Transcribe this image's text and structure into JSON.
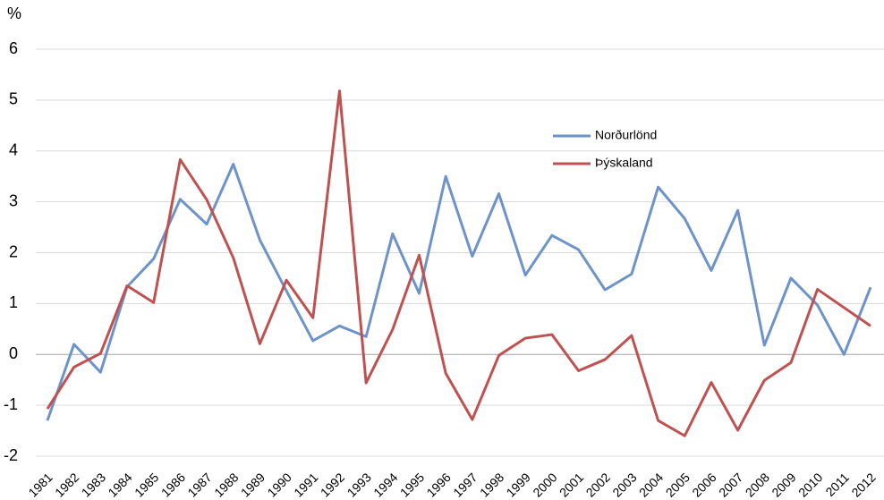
{
  "chart_data": {
    "type": "line",
    "y_label": "%",
    "categories": [
      "1981",
      "1982",
      "1983",
      "1984",
      "1985",
      "1986",
      "1987",
      "1988",
      "1989",
      "1990",
      "1991",
      "1992",
      "1993",
      "1994",
      "1995",
      "1996",
      "1997",
      "1998",
      "1999",
      "2000",
      "2001",
      "2002",
      "2003",
      "2004",
      "2005",
      "2006",
      "2007",
      "2008",
      "2009",
      "2010",
      "2011",
      "2012"
    ],
    "series": [
      {
        "name": "Norðurlönd",
        "color": "#6d93c9",
        "values": [
          -1.3,
          0.2,
          -0.35,
          1.33,
          1.88,
          3.05,
          2.56,
          3.74,
          2.25,
          1.25,
          0.27,
          0.56,
          0.35,
          2.37,
          1.2,
          3.5,
          1.93,
          3.16,
          1.56,
          2.34,
          2.06,
          1.27,
          1.58,
          3.29,
          2.67,
          1.65,
          2.83,
          0.18,
          1.5,
          0.97,
          0,
          1.32
        ]
      },
      {
        "name": "Þýskaland",
        "color": "#bf5250",
        "values": [
          -1.07,
          -0.25,
          0.02,
          1.35,
          1.02,
          3.83,
          3.04,
          1.9,
          0.21,
          1.46,
          0.72,
          5.18,
          -0.56,
          0.49,
          1.95,
          -0.37,
          -1.28,
          -0.02,
          0.32,
          0.39,
          -0.32,
          -0.1,
          0.37,
          -1.3,
          -1.6,
          -0.55,
          -1.49,
          -0.51,
          -0.16,
          1.28,
          0.92,
          0.56
        ]
      }
    ],
    "ylim": [
      -2,
      6
    ],
    "yticks": [
      -2,
      -1,
      0,
      1,
      2,
      3,
      4,
      5,
      6
    ],
    "grid": true
  }
}
